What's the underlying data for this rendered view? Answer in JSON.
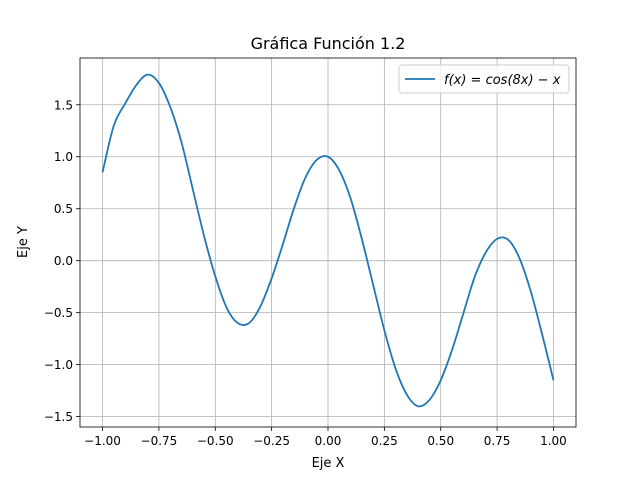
{
  "chart_data": {
    "type": "line",
    "title": "Gráfica Función 1.2",
    "xlabel": "Eje X",
    "ylabel": "Eje Y",
    "xlim": [
      -1.1,
      1.1
    ],
    "ylim": [
      -1.6,
      1.95
    ],
    "grid": true,
    "legend_placement": "top-right",
    "x_ticks": [
      -1.0,
      -0.75,
      -0.5,
      -0.25,
      0.0,
      0.25,
      0.5,
      0.75,
      1.0
    ],
    "x_tick_labels": [
      "−1.00",
      "−0.75",
      "−0.50",
      "−0.25",
      "0.00",
      "0.25",
      "0.50",
      "0.75",
      "1.00"
    ],
    "y_ticks": [
      -1.5,
      -1.0,
      -0.5,
      0.0,
      0.5,
      1.0,
      1.5
    ],
    "y_tick_labels": [
      "−1.5",
      "−1.0",
      "−0.5",
      "0.0",
      "0.5",
      "1.0",
      "1.5"
    ],
    "series": [
      {
        "name": "f(x) = cos(8x) − x",
        "color": "#1f77b4",
        "x": [
          -1.0,
          -0.95,
          -0.9,
          -0.85,
          -0.8,
          -0.75,
          -0.7,
          -0.65,
          -0.6,
          -0.55,
          -0.5,
          -0.45,
          -0.4,
          -0.35,
          -0.3,
          -0.25,
          -0.2,
          -0.15,
          -0.1,
          -0.05,
          0.0,
          0.05,
          0.1,
          0.15,
          0.2,
          0.25,
          0.3,
          0.35,
          0.4,
          0.45,
          0.5,
          0.55,
          0.6,
          0.65,
          0.7,
          0.75,
          0.8,
          0.85,
          0.9,
          0.95,
          1.0
        ],
        "y": [
          0.85,
          1.3,
          1.51,
          1.69,
          1.79,
          1.71,
          1.48,
          1.14,
          0.69,
          0.24,
          -0.15,
          -0.45,
          -0.6,
          -0.6,
          -0.44,
          -0.17,
          0.16,
          0.51,
          0.8,
          0.97,
          1.0,
          0.87,
          0.6,
          0.21,
          -0.23,
          -0.67,
          -1.04,
          -1.29,
          -1.4,
          -1.34,
          -1.15,
          -0.86,
          -0.51,
          -0.16,
          0.08,
          0.21,
          0.2,
          0.02,
          -0.3,
          -0.71,
          -1.15
        ]
      }
    ]
  }
}
